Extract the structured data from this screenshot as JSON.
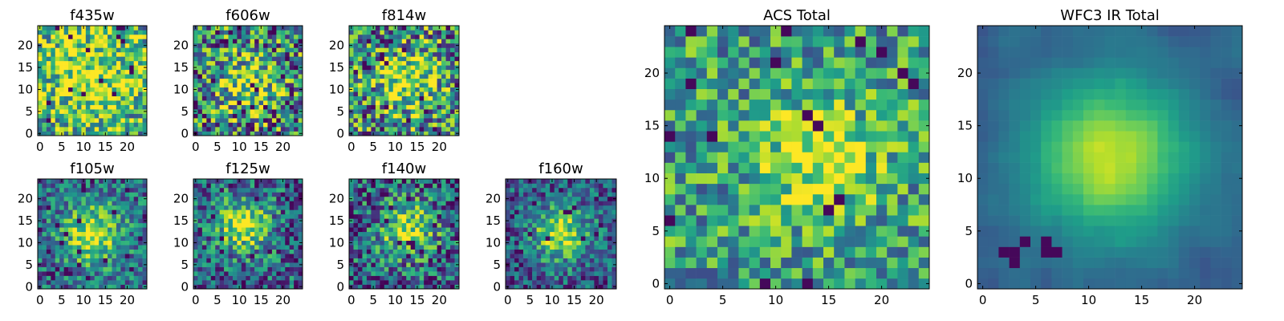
{
  "chart_data": [
    {
      "type": "heatmap",
      "title": "f435w",
      "xticks": [
        "0",
        "5",
        "10",
        "15",
        "20"
      ],
      "yticks": [
        "0",
        "5",
        "10",
        "15",
        "20"
      ],
      "grid_size": 25,
      "xlim": [
        -0.5,
        24.5
      ],
      "ylim": [
        -0.5,
        24.5
      ],
      "colormap": "viridis",
      "pattern": "noise",
      "seed": 11,
      "peak": [
        12,
        13
      ],
      "spread": 8,
      "noise": 0.42,
      "base": 0.58
    },
    {
      "type": "heatmap",
      "title": "f606w",
      "xticks": [
        "0",
        "5",
        "10",
        "15",
        "20"
      ],
      "yticks": [
        "0",
        "5",
        "10",
        "15",
        "20"
      ],
      "grid_size": 25,
      "xlim": [
        -0.5,
        24.5
      ],
      "ylim": [
        -0.5,
        24.5
      ],
      "colormap": "viridis",
      "pattern": "noise",
      "seed": 23,
      "peak": [
        12,
        11
      ],
      "spread": 5,
      "noise": 0.5,
      "base": 0.45
    },
    {
      "type": "heatmap",
      "title": "f814w",
      "xticks": [
        "0",
        "5",
        "10",
        "15",
        "20"
      ],
      "yticks": [
        "0",
        "5",
        "10",
        "15",
        "20"
      ],
      "grid_size": 25,
      "xlim": [
        -0.5,
        24.5
      ],
      "ylim": [
        -0.5,
        24.5
      ],
      "colormap": "viridis",
      "pattern": "noise",
      "seed": 37,
      "peak": [
        13,
        12
      ],
      "spread": 5,
      "noise": 0.48,
      "base": 0.48
    },
    {
      "type": "heatmap",
      "title": "f105w",
      "xticks": [
        "0",
        "5",
        "10",
        "15",
        "20"
      ],
      "yticks": [
        "0",
        "5",
        "10",
        "15",
        "20"
      ],
      "grid_size": 25,
      "xlim": [
        -0.5,
        24.5
      ],
      "ylim": [
        -0.5,
        24.5
      ],
      "colormap": "viridis",
      "pattern": "source",
      "seed": 41,
      "peak": [
        12,
        12
      ],
      "spread": 5,
      "noise": 0.3,
      "base": 0.35
    },
    {
      "type": "heatmap",
      "title": "f125w",
      "xticks": [
        "0",
        "5",
        "10",
        "15",
        "20"
      ],
      "yticks": [
        "0",
        "5",
        "10",
        "15",
        "20"
      ],
      "grid_size": 25,
      "xlim": [
        -0.5,
        24.5
      ],
      "ylim": [
        -0.5,
        24.5
      ],
      "colormap": "viridis",
      "pattern": "source",
      "seed": 53,
      "peak": [
        11,
        14
      ],
      "spread": 4.5,
      "noise": 0.35,
      "base": 0.32
    },
    {
      "type": "heatmap",
      "title": "f140w",
      "xticks": [
        "0",
        "5",
        "10",
        "15",
        "20"
      ],
      "yticks": [
        "0",
        "5",
        "10",
        "15",
        "20"
      ],
      "grid_size": 25,
      "xlim": [
        -0.5,
        24.5
      ],
      "ylim": [
        -0.5,
        24.5
      ],
      "colormap": "viridis",
      "pattern": "source",
      "seed": 67,
      "peak": [
        13,
        13
      ],
      "spread": 4.5,
      "noise": 0.38,
      "base": 0.32
    },
    {
      "type": "heatmap",
      "title": "f160w",
      "xticks": [
        "0",
        "5",
        "10",
        "15",
        "20"
      ],
      "yticks": [
        "0",
        "5",
        "10",
        "15",
        "20"
      ],
      "grid_size": 25,
      "xlim": [
        -0.5,
        24.5
      ],
      "ylim": [
        -0.5,
        24.5
      ],
      "colormap": "viridis",
      "pattern": "source",
      "seed": 79,
      "peak": [
        12,
        12
      ],
      "spread": 4.5,
      "noise": 0.3,
      "base": 0.28
    },
    {
      "type": "heatmap",
      "title": "ACS Total",
      "xticks": [
        "0",
        "5",
        "10",
        "15",
        "20"
      ],
      "yticks": [
        "0",
        "5",
        "10",
        "15",
        "20"
      ],
      "grid_size": 25,
      "xlim": [
        -0.5,
        24.5
      ],
      "ylim": [
        -0.5,
        24.5
      ],
      "colormap": "viridis",
      "pattern": "noise",
      "seed": 97,
      "peak": [
        14,
        12
      ],
      "spread": 4,
      "noise": 0.32,
      "base": 0.55
    },
    {
      "type": "heatmap",
      "title": "WFC3 IR Total",
      "xticks": [
        "0",
        "5",
        "10",
        "15",
        "20"
      ],
      "yticks": [
        "0",
        "5",
        "10",
        "15",
        "20"
      ],
      "grid_size": 25,
      "xlim": [
        -0.5,
        24.5
      ],
      "ylim": [
        -0.5,
        24.5
      ],
      "colormap": "viridis",
      "pattern": "smooth",
      "seed": 113,
      "peak": [
        12,
        12
      ],
      "spread": 5.5,
      "noise": 0.12,
      "base": 0.3
    }
  ]
}
